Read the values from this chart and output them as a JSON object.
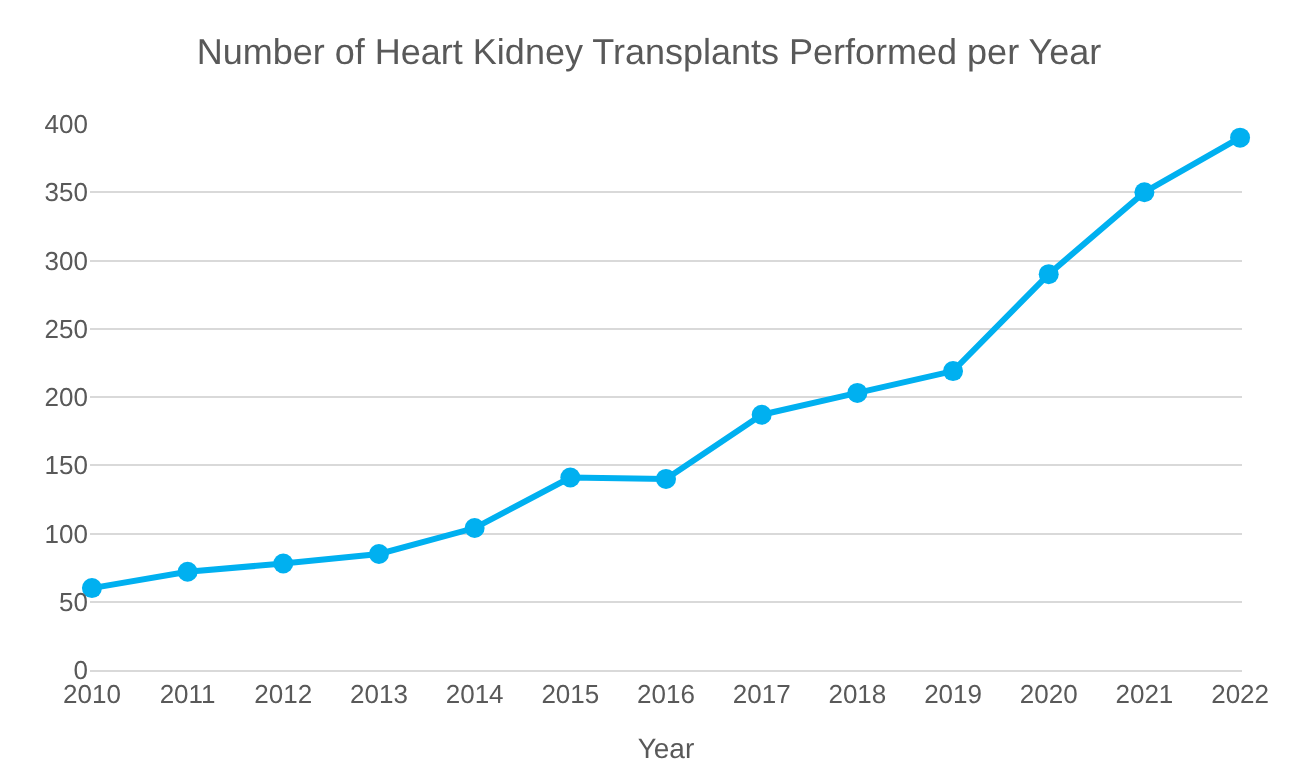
{
  "chart_data": {
    "type": "line",
    "title": "Number of Heart Kidney Transplants Performed per Year",
    "xlabel": "Year",
    "categories": [
      "2010",
      "2011",
      "2012",
      "2013",
      "2014",
      "2015",
      "2016",
      "2017",
      "2018",
      "2019",
      "2020",
      "2021",
      "2022"
    ],
    "series": [
      {
        "color": "#00b0f0",
        "values": [
          60,
          72,
          78,
          85,
          104,
          141,
          140,
          187,
          203,
          219,
          290,
          350,
          390
        ]
      }
    ],
    "ylim": [
      0,
      400
    ],
    "yticks": [
      0,
      50,
      100,
      150,
      200,
      250,
      300,
      350,
      400
    ],
    "grid": "y",
    "marker": "circle",
    "line_style": "solid"
  }
}
